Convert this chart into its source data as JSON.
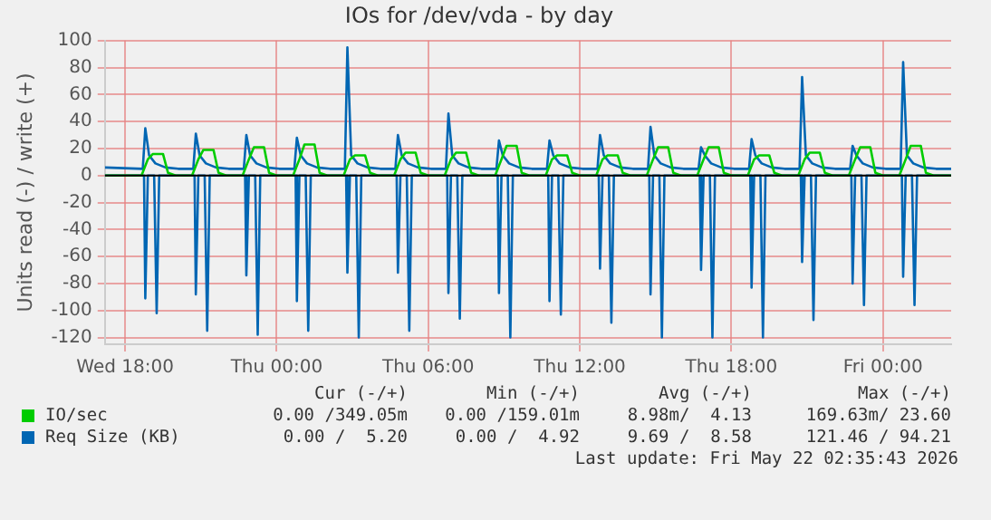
{
  "chart_data": {
    "type": "line",
    "title": "IOs for /dev/vda - by day",
    "ylabel": "Units read (-) / write (+)",
    "xlim": [
      "2026-05-20T17:12",
      "2026-05-22T02:42"
    ],
    "xticks": [
      {
        "value": "2026-05-20T18:00",
        "label": "Wed 18:00"
      },
      {
        "value": "2026-05-21T00:00",
        "label": "Thu 00:00"
      },
      {
        "value": "2026-05-21T06:00",
        "label": "Thu 06:00"
      },
      {
        "value": "2026-05-21T12:00",
        "label": "Thu 12:00"
      },
      {
        "value": "2026-05-21T18:00",
        "label": "Thu 18:00"
      },
      {
        "value": "2026-05-22T00:00",
        "label": "Fri 00:00"
      }
    ],
    "ylim": [
      -125,
      100
    ],
    "yticks": [
      -120,
      -100,
      -80,
      -60,
      -40,
      -20,
      0,
      20,
      40,
      60,
      80,
      100
    ],
    "grid": true,
    "legend": "bottom",
    "marker": "none",
    "line_style": "solid",
    "ref_lines": [
      {
        "axis": "y",
        "value": 0,
        "color": "#000000"
      }
    ],
    "series": [
      {
        "name": "IO/sec",
        "color": "#00cc00",
        "x": [
          "2026-05-20T17:12",
          "2026-05-20T18:39",
          "2026-05-20T18:54",
          "2026-05-20T19:06",
          "2026-05-20T19:30",
          "2026-05-20T19:42",
          "2026-05-20T20:00",
          "2026-05-20T20:39",
          "2026-05-20T20:54",
          "2026-05-20T21:06",
          "2026-05-20T21:30",
          "2026-05-20T21:42",
          "2026-05-20T22:00",
          "2026-05-20T22:39",
          "2026-05-20T22:54",
          "2026-05-20T23:06",
          "2026-05-20T23:30",
          "2026-05-20T23:42",
          "2026-05-21T00:00",
          "2026-05-21T00:39",
          "2026-05-21T00:54",
          "2026-05-21T01:06",
          "2026-05-21T01:30",
          "2026-05-21T01:42",
          "2026-05-21T02:00",
          "2026-05-21T02:39",
          "2026-05-21T02:54",
          "2026-05-21T03:06",
          "2026-05-21T03:30",
          "2026-05-21T03:42",
          "2026-05-21T04:00",
          "2026-05-21T04:39",
          "2026-05-21T04:54",
          "2026-05-21T05:06",
          "2026-05-21T05:30",
          "2026-05-21T05:42",
          "2026-05-21T06:00",
          "2026-05-21T06:39",
          "2026-05-21T06:54",
          "2026-05-21T07:06",
          "2026-05-21T07:30",
          "2026-05-21T07:42",
          "2026-05-21T08:00",
          "2026-05-21T08:39",
          "2026-05-21T08:54",
          "2026-05-21T09:06",
          "2026-05-21T09:30",
          "2026-05-21T09:42",
          "2026-05-21T10:00",
          "2026-05-21T10:39",
          "2026-05-21T10:54",
          "2026-05-21T11:06",
          "2026-05-21T11:30",
          "2026-05-21T11:42",
          "2026-05-21T12:00",
          "2026-05-21T12:39",
          "2026-05-21T12:54",
          "2026-05-21T13:06",
          "2026-05-21T13:30",
          "2026-05-21T13:42",
          "2026-05-21T14:00",
          "2026-05-21T14:39",
          "2026-05-21T14:54",
          "2026-05-21T15:06",
          "2026-05-21T15:30",
          "2026-05-21T15:42",
          "2026-05-21T16:00",
          "2026-05-21T16:39",
          "2026-05-21T16:54",
          "2026-05-21T17:06",
          "2026-05-21T17:30",
          "2026-05-21T17:42",
          "2026-05-21T18:00",
          "2026-05-21T18:39",
          "2026-05-21T18:54",
          "2026-05-21T19:06",
          "2026-05-21T19:30",
          "2026-05-21T19:42",
          "2026-05-21T20:00",
          "2026-05-21T20:39",
          "2026-05-21T20:54",
          "2026-05-21T21:06",
          "2026-05-21T21:30",
          "2026-05-21T21:42",
          "2026-05-21T22:00",
          "2026-05-21T22:39",
          "2026-05-21T22:54",
          "2026-05-21T23:06",
          "2026-05-21T23:30",
          "2026-05-21T23:42",
          "2026-05-22T00:00",
          "2026-05-22T00:39",
          "2026-05-22T00:54",
          "2026-05-22T01:06",
          "2026-05-22T01:30",
          "2026-05-22T01:42",
          "2026-05-22T02:00",
          "2026-05-22T02:42"
        ],
        "values": [
          0,
          0,
          12,
          16,
          16,
          2,
          0,
          0,
          12,
          19,
          19,
          2,
          0,
          0,
          12,
          21,
          21,
          2,
          0,
          0,
          12,
          23,
          23,
          2,
          0,
          0,
          12,
          15,
          15,
          2,
          0,
          0,
          12,
          17,
          17,
          2,
          0,
          0,
          12,
          17,
          17,
          2,
          0,
          0,
          12,
          22,
          22,
          2,
          0,
          0,
          12,
          15,
          15,
          2,
          0,
          0,
          12,
          15,
          15,
          2,
          0,
          0,
          12,
          21,
          21,
          2,
          0,
          0,
          12,
          21,
          21,
          2,
          0,
          0,
          12,
          15,
          15,
          2,
          0,
          0,
          12,
          17,
          17,
          2,
          0,
          0,
          12,
          21,
          21,
          2,
          0,
          0,
          12,
          22,
          22,
          2,
          0,
          0
        ]
      },
      {
        "name": "Req Size (KB)",
        "color": "#0066b3",
        "x": [
          "2026-05-20T17:12",
          "2026-05-20T18:42",
          "2026-05-20T18:48",
          "2026-05-20T18:57",
          "2026-05-20T19:12",
          "2026-05-20T19:36",
          "2026-05-20T20:06",
          "2026-05-20T20:42",
          "2026-05-20T20:48",
          "2026-05-20T20:57",
          "2026-05-20T21:12",
          "2026-05-20T21:36",
          "2026-05-20T22:06",
          "2026-05-20T22:42",
          "2026-05-20T22:48",
          "2026-05-20T22:57",
          "2026-05-20T23:12",
          "2026-05-20T23:36",
          "2026-05-21T00:06",
          "2026-05-21T00:42",
          "2026-05-21T00:48",
          "2026-05-21T00:57",
          "2026-05-21T01:12",
          "2026-05-21T01:36",
          "2026-05-21T02:06",
          "2026-05-21T02:42",
          "2026-05-21T02:48",
          "2026-05-21T02:57",
          "2026-05-21T03:12",
          "2026-05-21T03:36",
          "2026-05-21T04:06",
          "2026-05-21T04:42",
          "2026-05-21T04:48",
          "2026-05-21T04:57",
          "2026-05-21T05:12",
          "2026-05-21T05:36",
          "2026-05-21T06:06",
          "2026-05-21T06:42",
          "2026-05-21T06:48",
          "2026-05-21T06:57",
          "2026-05-21T07:12",
          "2026-05-21T07:36",
          "2026-05-21T08:06",
          "2026-05-21T08:42",
          "2026-05-21T08:48",
          "2026-05-21T08:57",
          "2026-05-21T09:12",
          "2026-05-21T09:36",
          "2026-05-21T10:06",
          "2026-05-21T10:42",
          "2026-05-21T10:48",
          "2026-05-21T10:57",
          "2026-05-21T11:12",
          "2026-05-21T11:36",
          "2026-05-21T12:06",
          "2026-05-21T12:42",
          "2026-05-21T12:48",
          "2026-05-21T12:57",
          "2026-05-21T13:12",
          "2026-05-21T13:36",
          "2026-05-21T14:06",
          "2026-05-21T14:42",
          "2026-05-21T14:48",
          "2026-05-21T14:57",
          "2026-05-21T15:12",
          "2026-05-21T15:36",
          "2026-05-21T16:06",
          "2026-05-21T16:42",
          "2026-05-21T16:48",
          "2026-05-21T16:57",
          "2026-05-21T17:12",
          "2026-05-21T17:36",
          "2026-05-21T18:06",
          "2026-05-21T18:42",
          "2026-05-21T18:48",
          "2026-05-21T18:57",
          "2026-05-21T19:12",
          "2026-05-21T19:36",
          "2026-05-21T20:06",
          "2026-05-21T20:42",
          "2026-05-21T20:48",
          "2026-05-21T20:57",
          "2026-05-21T21:12",
          "2026-05-21T21:36",
          "2026-05-21T22:06",
          "2026-05-21T22:42",
          "2026-05-21T22:48",
          "2026-05-21T22:57",
          "2026-05-21T23:12",
          "2026-05-21T23:36",
          "2026-05-22T00:06",
          "2026-05-22T00:42",
          "2026-05-22T00:48",
          "2026-05-22T00:57",
          "2026-05-22T01:12",
          "2026-05-22T01:36",
          "2026-05-22T02:06",
          "2026-05-22T02:42"
        ],
        "values": [
          6,
          5,
          35,
          15,
          9,
          6,
          5,
          5,
          31,
          15,
          9,
          6,
          5,
          5,
          30,
          15,
          9,
          6,
          5,
          5,
          28,
          15,
          9,
          6,
          5,
          5,
          95,
          15,
          9,
          6,
          5,
          5,
          30,
          15,
          9,
          6,
          5,
          5,
          46,
          15,
          9,
          6,
          5,
          5,
          26,
          15,
          9,
          6,
          5,
          5,
          26,
          15,
          9,
          6,
          5,
          5,
          30,
          15,
          9,
          6,
          5,
          5,
          36,
          15,
          9,
          6,
          5,
          5,
          21,
          15,
          9,
          6,
          5,
          5,
          27,
          15,
          9,
          6,
          5,
          5,
          73,
          15,
          9,
          6,
          5,
          5,
          22,
          15,
          9,
          6,
          5,
          5,
          84,
          15,
          9,
          6,
          5,
          5
        ]
      },
      {
        "color": "#0066b3",
        "x": [
          "2026-05-20T17:12",
          "2026-05-20T18:45",
          "2026-05-20T18:48",
          "2026-05-20T18:54",
          "2026-05-20T19:09",
          "2026-05-20T19:15",
          "2026-05-20T19:21",
          "2026-05-20T20:45",
          "2026-05-20T20:48",
          "2026-05-20T20:54",
          "2026-05-20T21:09",
          "2026-05-20T21:15",
          "2026-05-20T21:21",
          "2026-05-20T22:45",
          "2026-05-20T22:48",
          "2026-05-20T22:54",
          "2026-05-20T23:09",
          "2026-05-20T23:15",
          "2026-05-20T23:21",
          "2026-05-21T00:45",
          "2026-05-21T00:48",
          "2026-05-21T00:54",
          "2026-05-21T01:09",
          "2026-05-21T01:15",
          "2026-05-21T01:21",
          "2026-05-21T02:45",
          "2026-05-21T02:48",
          "2026-05-21T02:54",
          "2026-05-21T03:09",
          "2026-05-21T03:15",
          "2026-05-21T03:21",
          "2026-05-21T04:45",
          "2026-05-21T04:48",
          "2026-05-21T04:54",
          "2026-05-21T05:09",
          "2026-05-21T05:15",
          "2026-05-21T05:21",
          "2026-05-21T06:45",
          "2026-05-21T06:48",
          "2026-05-21T06:54",
          "2026-05-21T07:09",
          "2026-05-21T07:15",
          "2026-05-21T07:21",
          "2026-05-21T08:45",
          "2026-05-21T08:48",
          "2026-05-21T08:54",
          "2026-05-21T09:09",
          "2026-05-21T09:15",
          "2026-05-21T09:21",
          "2026-05-21T10:45",
          "2026-05-21T10:48",
          "2026-05-21T10:54",
          "2026-05-21T11:09",
          "2026-05-21T11:15",
          "2026-05-21T11:21",
          "2026-05-21T12:45",
          "2026-05-21T12:48",
          "2026-05-21T12:54",
          "2026-05-21T13:09",
          "2026-05-21T13:15",
          "2026-05-21T13:21",
          "2026-05-21T14:45",
          "2026-05-21T14:48",
          "2026-05-21T14:54",
          "2026-05-21T15:09",
          "2026-05-21T15:15",
          "2026-05-21T15:21",
          "2026-05-21T16:45",
          "2026-05-21T16:48",
          "2026-05-21T16:54",
          "2026-05-21T17:09",
          "2026-05-21T17:15",
          "2026-05-21T17:21",
          "2026-05-21T18:45",
          "2026-05-21T18:48",
          "2026-05-21T18:54",
          "2026-05-21T19:09",
          "2026-05-21T19:15",
          "2026-05-21T19:21",
          "2026-05-21T20:45",
          "2026-05-21T20:48",
          "2026-05-21T20:54",
          "2026-05-21T21:09",
          "2026-05-21T21:15",
          "2026-05-21T21:21",
          "2026-05-21T22:45",
          "2026-05-21T22:48",
          "2026-05-21T22:54",
          "2026-05-21T23:09",
          "2026-05-21T23:15",
          "2026-05-21T23:21",
          "2026-05-22T00:45",
          "2026-05-22T00:48",
          "2026-05-22T00:54",
          "2026-05-22T01:09",
          "2026-05-22T01:15",
          "2026-05-22T01:21",
          "2026-05-22T02:42"
        ],
        "values": [
          0,
          0,
          -91,
          0,
          0,
          -102,
          0,
          0,
          -88,
          0,
          0,
          -115,
          0,
          0,
          -74,
          0,
          0,
          -118,
          0,
          0,
          -93,
          0,
          0,
          -115,
          0,
          0,
          -72,
          0,
          0,
          -120,
          0,
          0,
          -72,
          0,
          0,
          -115,
          0,
          0,
          -87,
          0,
          0,
          -106,
          0,
          0,
          -87,
          0,
          0,
          -120,
          0,
          0,
          -93,
          0,
          0,
          -103,
          0,
          0,
          -69,
          0,
          0,
          -109,
          0,
          0,
          -88,
          0,
          0,
          -120,
          0,
          0,
          -70,
          0,
          0,
          -120,
          0,
          0,
          -83,
          0,
          0,
          -120,
          0,
          0,
          -64,
          0,
          0,
          -107,
          0,
          0,
          -80,
          0,
          0,
          -96,
          0,
          0,
          -75,
          0,
          0,
          -96,
          0,
          0
        ]
      }
    ],
    "annotations": [
      "Cur (-/+)",
      "Min (-/+)",
      "Avg (-/+)",
      "Max (-/+)",
      "0.00 /349.05m",
      "0.00 /159.01m",
      "8.98m/  4.13",
      "169.63m/ 23.60",
      "0.00 /  5.20",
      "0.00 /  4.92",
      "9.69 /  8.58",
      "121.46 / 94.21",
      "Last update: Fri May 22 02:35:43 2026"
    ]
  }
}
